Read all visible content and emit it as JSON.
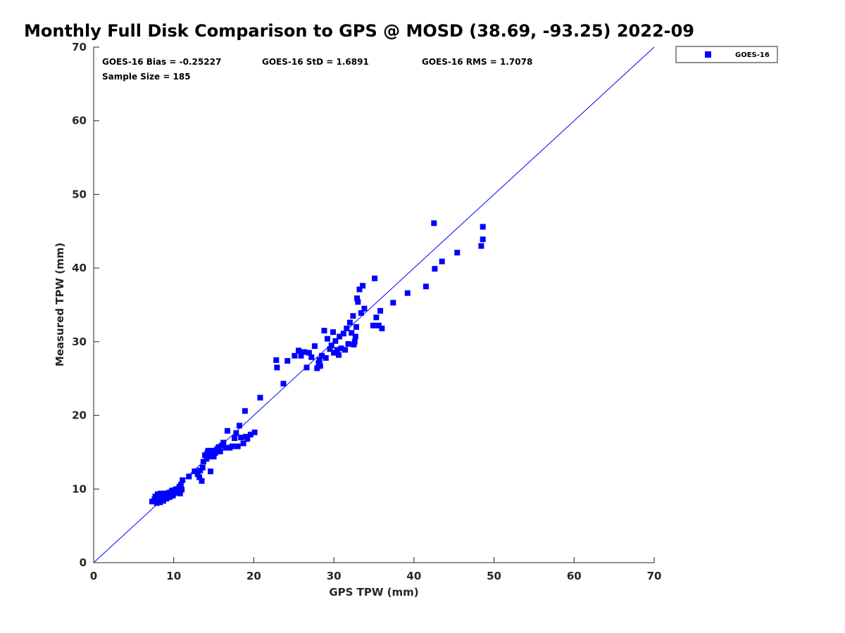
{
  "chart_data": {
    "type": "scatter",
    "title": "Monthly Full Disk Comparison to GPS @ MOSD (38.69, -93.25) 2022-09",
    "xlabel": "GPS TPW (mm)",
    "ylabel": "Measured TPW (mm)",
    "xlim": [
      0,
      70
    ],
    "ylim": [
      0,
      70
    ],
    "xticks": [
      "0",
      "10",
      "20",
      "30",
      "40",
      "50",
      "60",
      "70"
    ],
    "yticks": [
      "0",
      "10",
      "20",
      "30",
      "40",
      "50",
      "60",
      "70"
    ],
    "grid": false,
    "legend": {
      "position": "top-right",
      "entries": [
        "GOES-16"
      ]
    },
    "reference_line": {
      "label": "1:1",
      "x": [
        0,
        70
      ],
      "y": [
        0,
        70
      ],
      "color": "#0000ff"
    },
    "annotations": {
      "bias": "GOES-16 Bias = -0.25227",
      "std": "GOES-16 StD = 1.6891",
      "rms": "GOES-16 RMS = 1.7078",
      "sample": "Sample Size = 185"
    },
    "series": [
      {
        "name": "GOES-16",
        "color": "#0000ff",
        "marker": "square",
        "points": [
          [
            7.3,
            8.3
          ],
          [
            7.6,
            8.6
          ],
          [
            7.7,
            9.0
          ],
          [
            7.8,
            8.4
          ],
          [
            7.9,
            8.1
          ],
          [
            8.0,
            8.8
          ],
          [
            8.0,
            9.3
          ],
          [
            8.1,
            8.5
          ],
          [
            8.2,
            9.0
          ],
          [
            8.3,
            8.2
          ],
          [
            8.4,
            8.7
          ],
          [
            8.4,
            9.4
          ],
          [
            8.5,
            9.1
          ],
          [
            8.6,
            8.6
          ],
          [
            8.7,
            8.4
          ],
          [
            8.8,
            9.2
          ],
          [
            8.9,
            8.9
          ],
          [
            9.0,
            9.4
          ],
          [
            9.1,
            8.7
          ],
          [
            9.2,
            9.0
          ],
          [
            9.3,
            9.3
          ],
          [
            9.4,
            9.5
          ],
          [
            9.5,
            8.9
          ],
          [
            9.6,
            9.2
          ],
          [
            9.7,
            9.6
          ],
          [
            9.8,
            9.8
          ],
          [
            9.9,
            9.1
          ],
          [
            10.0,
            9.4
          ],
          [
            10.1,
            9.7
          ],
          [
            10.2,
            9.9
          ],
          [
            10.3,
            9.5
          ],
          [
            10.4,
            10.0
          ],
          [
            10.5,
            9.6
          ],
          [
            10.6,
            9.8
          ],
          [
            10.7,
            10.3
          ],
          [
            10.8,
            9.4
          ],
          [
            10.9,
            10.6
          ],
          [
            11.0,
            9.9
          ],
          [
            11.1,
            11.2
          ],
          [
            11.9,
            11.7
          ],
          [
            12.6,
            12.4
          ],
          [
            13.0,
            12.0
          ],
          [
            13.2,
            11.6
          ],
          [
            13.3,
            12.5
          ],
          [
            13.5,
            11.1
          ],
          [
            13.6,
            12.9
          ],
          [
            13.7,
            13.7
          ],
          [
            13.9,
            14.6
          ],
          [
            14.1,
            14.1
          ],
          [
            14.2,
            14.9
          ],
          [
            14.3,
            15.2
          ],
          [
            14.4,
            14.4
          ],
          [
            14.6,
            12.4
          ],
          [
            14.7,
            14.7
          ],
          [
            14.8,
            15.2
          ],
          [
            15.0,
            14.4
          ],
          [
            15.2,
            14.9
          ],
          [
            15.4,
            15.4
          ],
          [
            15.6,
            15.7
          ],
          [
            15.8,
            15.1
          ],
          [
            16.0,
            15.9
          ],
          [
            16.2,
            16.3
          ],
          [
            16.5,
            15.6
          ],
          [
            16.7,
            17.9
          ],
          [
            17.0,
            15.6
          ],
          [
            17.3,
            15.8
          ],
          [
            17.6,
            16.9
          ],
          [
            17.8,
            17.6
          ],
          [
            18.0,
            15.8
          ],
          [
            18.2,
            18.6
          ],
          [
            18.4,
            17.0
          ],
          [
            18.7,
            16.2
          ],
          [
            18.9,
            20.6
          ],
          [
            19.0,
            17.1
          ],
          [
            19.2,
            16.8
          ],
          [
            19.6,
            17.4
          ],
          [
            20.1,
            17.7
          ],
          [
            20.8,
            22.4
          ],
          [
            22.8,
            27.5
          ],
          [
            22.9,
            26.5
          ],
          [
            23.7,
            24.3
          ],
          [
            24.2,
            27.4
          ],
          [
            25.1,
            28.1
          ],
          [
            25.6,
            28.8
          ],
          [
            25.9,
            28.1
          ],
          [
            26.3,
            28.6
          ],
          [
            26.6,
            26.5
          ],
          [
            26.9,
            28.5
          ],
          [
            27.2,
            27.9
          ],
          [
            27.6,
            29.4
          ],
          [
            27.9,
            26.4
          ],
          [
            28.1,
            27.1
          ],
          [
            28.2,
            27.5
          ],
          [
            28.3,
            26.7
          ],
          [
            28.5,
            28.1
          ],
          [
            28.8,
            31.5
          ],
          [
            29.0,
            27.8
          ],
          [
            29.2,
            30.4
          ],
          [
            29.5,
            29.0
          ],
          [
            29.7,
            29.5
          ],
          [
            29.9,
            31.3
          ],
          [
            30.0,
            28.5
          ],
          [
            30.2,
            30.1
          ],
          [
            30.4,
            28.9
          ],
          [
            30.6,
            28.2
          ],
          [
            30.7,
            30.7
          ],
          [
            30.9,
            29.1
          ],
          [
            31.2,
            31.1
          ],
          [
            31.4,
            28.9
          ],
          [
            31.6,
            31.8
          ],
          [
            31.8,
            29.7
          ],
          [
            32.0,
            32.6
          ],
          [
            32.2,
            31.2
          ],
          [
            32.4,
            33.5
          ],
          [
            32.5,
            29.6
          ],
          [
            32.6,
            30.0
          ],
          [
            32.7,
            30.7
          ],
          [
            32.8,
            32.0
          ],
          [
            32.9,
            35.9
          ],
          [
            33.0,
            35.4
          ],
          [
            33.2,
            37.1
          ],
          [
            33.4,
            33.9
          ],
          [
            33.6,
            37.6
          ],
          [
            33.8,
            34.5
          ],
          [
            34.9,
            32.2
          ],
          [
            35.1,
            38.6
          ],
          [
            35.3,
            33.3
          ],
          [
            35.6,
            32.2
          ],
          [
            35.8,
            34.2
          ],
          [
            36.0,
            31.8
          ],
          [
            37.4,
            35.3
          ],
          [
            39.2,
            36.6
          ],
          [
            41.5,
            37.5
          ],
          [
            42.5,
            46.1
          ],
          [
            42.6,
            39.9
          ],
          [
            43.5,
            40.9
          ],
          [
            45.4,
            42.1
          ],
          [
            48.4,
            43.0
          ],
          [
            48.6,
            43.9
          ],
          [
            48.6,
            45.6
          ]
        ]
      }
    ]
  }
}
